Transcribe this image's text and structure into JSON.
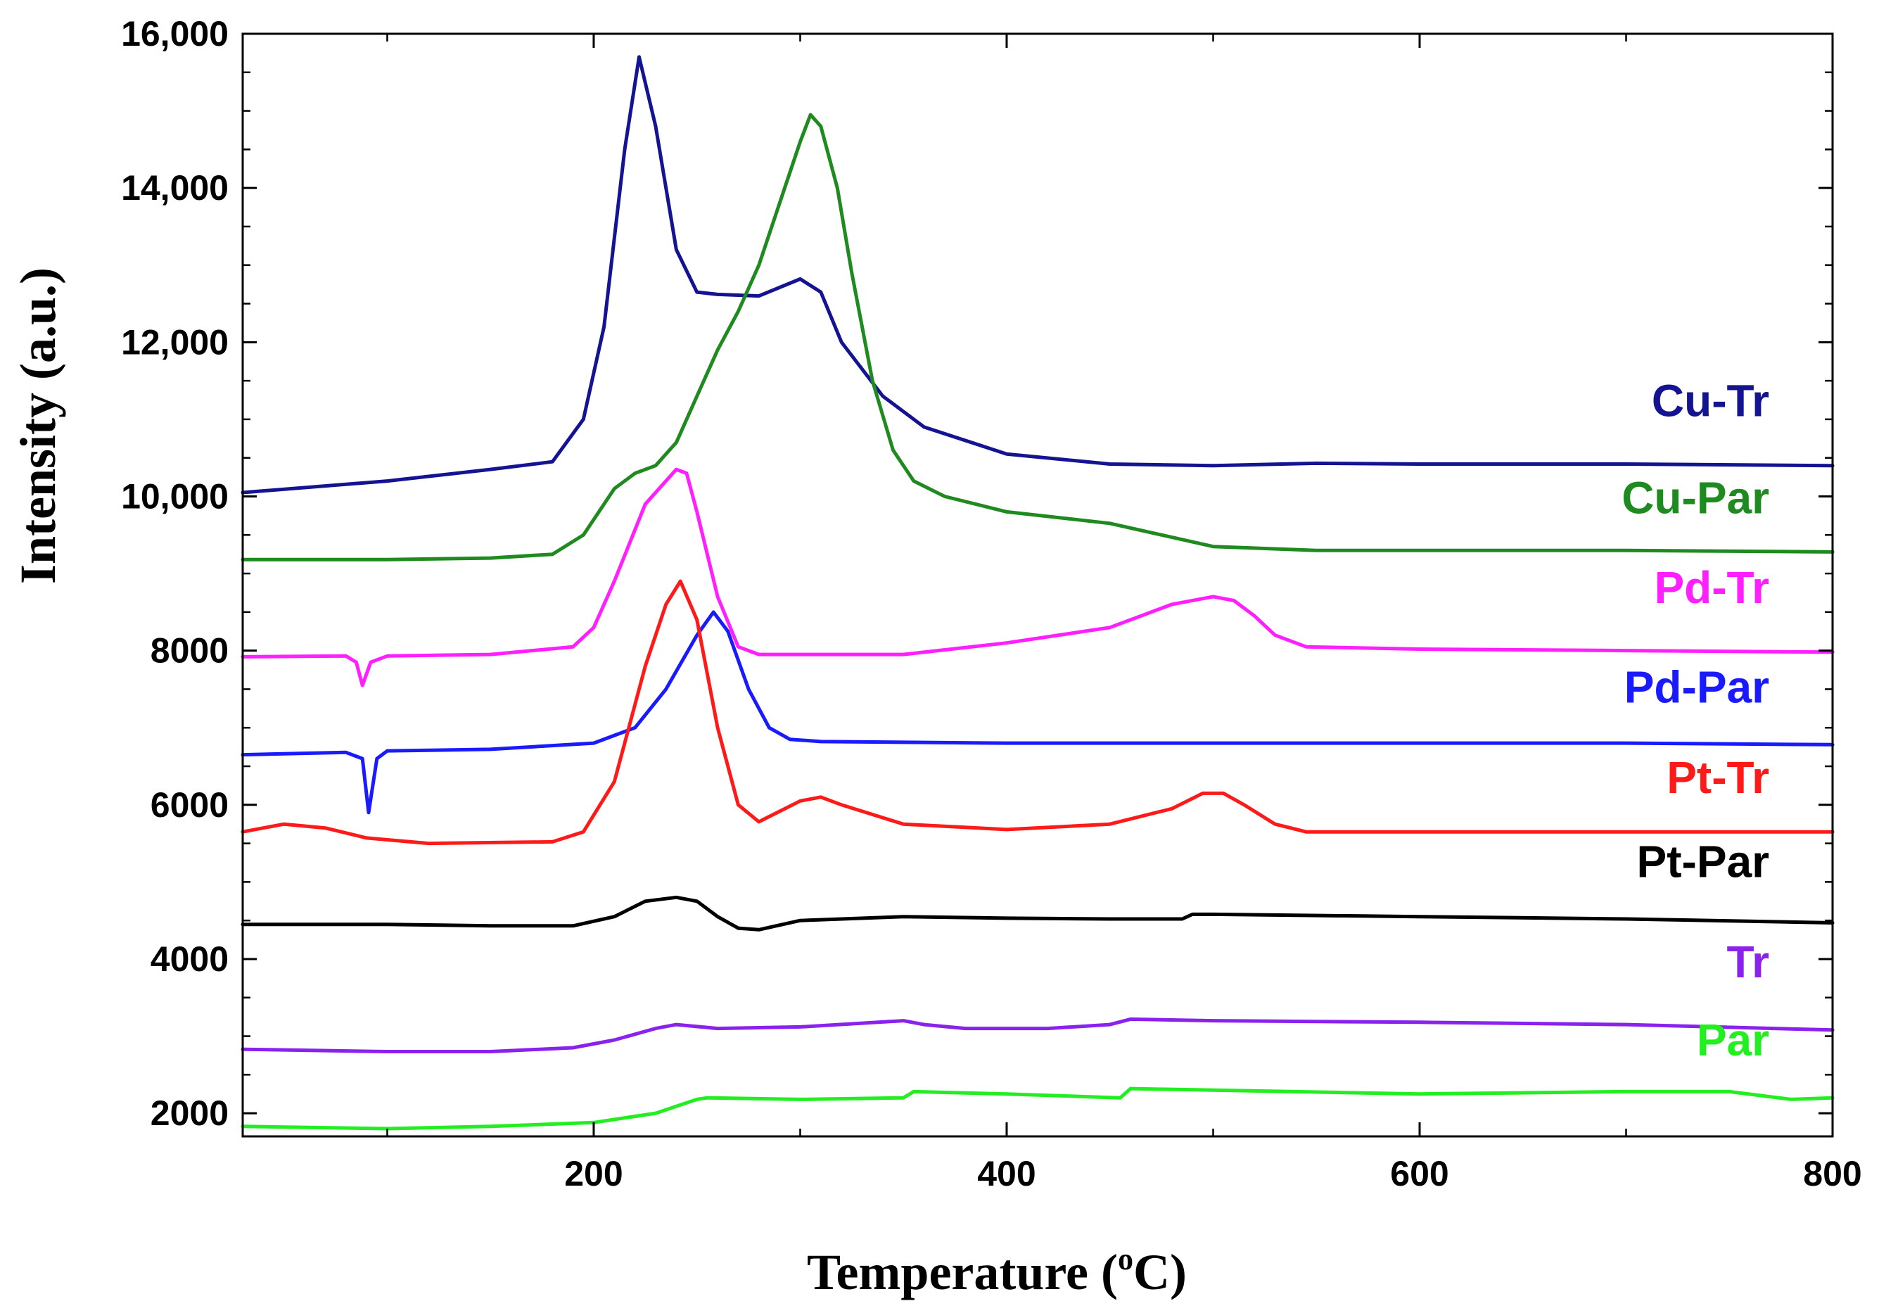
{
  "chart_data": {
    "type": "line",
    "title": "",
    "xlabel": "Temperature (",
    "xlabel_sup": "o",
    "xlabel_unit": "C)",
    "ylabel": "Intensity (a.u.)",
    "xlim": [
      30,
      800
    ],
    "ylim": [
      1700,
      16000
    ],
    "x_ticks": [
      200,
      400,
      600,
      800
    ],
    "x_tick_labels": [
      "200",
      "400",
      "600",
      "800"
    ],
    "y_ticks": [
      2000,
      4000,
      6000,
      8000,
      10000,
      12000,
      14000,
      16000
    ],
    "y_tick_labels": [
      "2000",
      "4000",
      "6000",
      "8000",
      "10,000",
      "12,000",
      "14,000",
      "16,000"
    ],
    "grid": false,
    "legend": "inline-right",
    "series": [
      {
        "name": "Cu-Tr",
        "label": "Cu-Tr",
        "color": "#141493",
        "x": [
          30,
          100,
          150,
          180,
          195,
          205,
          215,
          222,
          230,
          240,
          250,
          260,
          280,
          300,
          310,
          320,
          340,
          360,
          400,
          450,
          500,
          550,
          600,
          700,
          800
        ],
        "y": [
          10050,
          10200,
          10350,
          10450,
          11000,
          12200,
          14500,
          15700,
          14800,
          13200,
          12650,
          12620,
          12600,
          12820,
          12650,
          12000,
          11300,
          10900,
          10550,
          10420,
          10400,
          10430,
          10420,
          10420,
          10400
        ]
      },
      {
        "name": "Cu-Par",
        "label": "Cu-Par",
        "color": "#1f8a1f",
        "x": [
          30,
          100,
          150,
          180,
          195,
          210,
          220,
          230,
          240,
          250,
          260,
          270,
          280,
          290,
          300,
          305,
          310,
          318,
          325,
          335,
          345,
          355,
          370,
          400,
          450,
          500,
          550,
          600,
          700,
          800
        ],
        "y": [
          9180,
          9180,
          9200,
          9250,
          9500,
          10100,
          10300,
          10400,
          10700,
          11300,
          11900,
          12400,
          13000,
          13800,
          14600,
          14950,
          14800,
          14000,
          12900,
          11500,
          10600,
          10200,
          10000,
          9800,
          9650,
          9350,
          9300,
          9300,
          9300,
          9280
        ]
      },
      {
        "name": "Pd-Tr",
        "label": "Pd-Tr",
        "color": "#ff1fff",
        "x": [
          30,
          80,
          85,
          88,
          92,
          100,
          150,
          190,
          200,
          210,
          225,
          240,
          245,
          250,
          260,
          270,
          280,
          300,
          350,
          400,
          450,
          480,
          500,
          510,
          520,
          530,
          545,
          600,
          700,
          800
        ],
        "y": [
          7920,
          7930,
          7850,
          7550,
          7850,
          7930,
          7950,
          8050,
          8300,
          8900,
          9900,
          10350,
          10300,
          9800,
          8700,
          8050,
          7950,
          7950,
          7950,
          8100,
          8300,
          8600,
          8700,
          8650,
          8450,
          8200,
          8050,
          8020,
          8000,
          7980
        ]
      },
      {
        "name": "Pd-Par",
        "label": "Pd-Par",
        "color": "#1a1aff",
        "x": [
          30,
          80,
          88,
          91,
          95,
          100,
          150,
          200,
          220,
          235,
          250,
          258,
          265,
          275,
          285,
          295,
          310,
          400,
          500,
          600,
          700,
          800
        ],
        "y": [
          6650,
          6680,
          6600,
          5900,
          6600,
          6700,
          6720,
          6800,
          7000,
          7500,
          8200,
          8500,
          8250,
          7500,
          7000,
          6850,
          6820,
          6800,
          6800,
          6800,
          6800,
          6780
        ]
      },
      {
        "name": "Pt-Tr",
        "label": "Pt-Tr",
        "color": "#ff1a1a",
        "x": [
          30,
          50,
          70,
          90,
          120,
          180,
          195,
          210,
          225,
          235,
          242,
          250,
          260,
          270,
          280,
          300,
          310,
          320,
          350,
          400,
          450,
          480,
          495,
          505,
          515,
          530,
          545,
          600,
          700,
          800
        ],
        "y": [
          5650,
          5750,
          5700,
          5570,
          5500,
          5520,
          5650,
          6300,
          7800,
          8600,
          8900,
          8400,
          7000,
          6000,
          5780,
          6050,
          6100,
          6000,
          5750,
          5680,
          5750,
          5950,
          6150,
          6150,
          6000,
          5750,
          5650,
          5650,
          5650,
          5650
        ]
      },
      {
        "name": "Pt-Par",
        "label": "Pt-Par",
        "color": "#000000",
        "x": [
          30,
          100,
          150,
          190,
          210,
          225,
          240,
          250,
          260,
          270,
          280,
          300,
          350,
          400,
          450,
          485,
          490,
          500,
          600,
          700,
          800
        ],
        "y": [
          4450,
          4450,
          4430,
          4430,
          4550,
          4750,
          4800,
          4750,
          4550,
          4400,
          4380,
          4500,
          4550,
          4530,
          4520,
          4520,
          4580,
          4580,
          4550,
          4520,
          4470
        ]
      },
      {
        "name": "Tr",
        "label": "Tr",
        "color": "#8a22ee",
        "x": [
          30,
          100,
          150,
          190,
          210,
          230,
          240,
          260,
          300,
          350,
          360,
          380,
          420,
          450,
          460,
          500,
          600,
          700,
          800
        ],
        "y": [
          2830,
          2800,
          2800,
          2850,
          2950,
          3100,
          3150,
          3100,
          3120,
          3200,
          3150,
          3100,
          3100,
          3150,
          3220,
          3200,
          3180,
          3150,
          3080
        ]
      },
      {
        "name": "Par",
        "label": "Par",
        "color": "#22ee22",
        "x": [
          30,
          100,
          150,
          200,
          230,
          250,
          255,
          300,
          350,
          355,
          400,
          455,
          460,
          500,
          600,
          700,
          750,
          780,
          800
        ],
        "y": [
          1830,
          1800,
          1830,
          1880,
          2000,
          2180,
          2200,
          2180,
          2200,
          2280,
          2250,
          2200,
          2320,
          2300,
          2250,
          2280,
          2280,
          2180,
          2200
        ]
      }
    ]
  }
}
